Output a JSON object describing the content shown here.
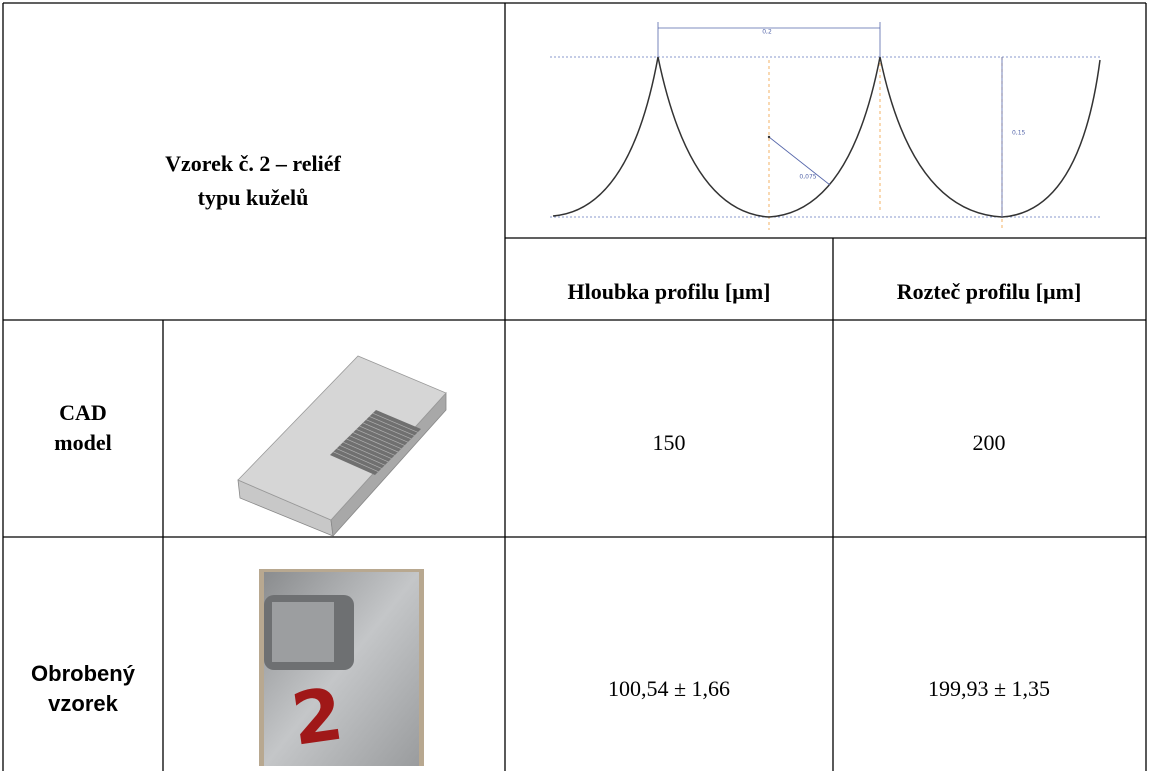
{
  "header": {
    "title_lines": [
      "Vzorek č. 2 – reliéf",
      "typu kuželů"
    ],
    "profile_labels": {
      "pitch": "0,2",
      "radius": "0,075",
      "depth": "0,15"
    }
  },
  "table": {
    "columns": [
      "Hloubka profilu [µm]",
      "Rozteč profilu [µm]"
    ],
    "rows": [
      {
        "label": [
          "CAD",
          "model"
        ],
        "values": [
          "150",
          "200"
        ]
      },
      {
        "label": [
          "Obrobený",
          "vzorek"
        ],
        "values": [
          "100,54 ± 1,66",
          "199,93 ± 1,35"
        ]
      }
    ]
  }
}
